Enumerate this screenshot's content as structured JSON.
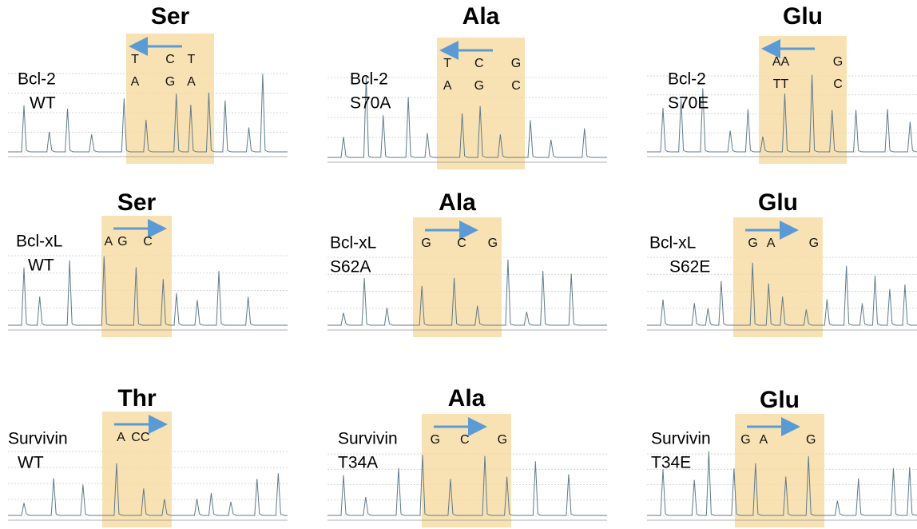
{
  "panels": [
    {
      "residue": "Ser",
      "gene": "Bcl-2",
      "variant": "WT",
      "top": [
        "T",
        "C",
        "T"
      ],
      "bottom": [
        "A",
        "G",
        "A"
      ]
    },
    {
      "residue": "Ala",
      "gene": "Bcl-2",
      "variant": "S70A",
      "top": [
        "T",
        "C",
        "G"
      ],
      "bottom": [
        "A",
        "G",
        "C"
      ]
    },
    {
      "residue": "Glu",
      "gene": "Bcl-2",
      "variant": "S70E",
      "top": [
        "AA",
        "G"
      ],
      "bottom": [
        "TT",
        "C"
      ]
    },
    {
      "residue": "Ser",
      "gene": "Bcl-xL",
      "variant": "WT",
      "top": [
        "A",
        "G",
        "C"
      ]
    },
    {
      "residue": "Ala",
      "gene": "Bcl-xL",
      "variant": "S62A",
      "top": [
        "G",
        "C",
        "G"
      ]
    },
    {
      "residue": "Glu",
      "gene": "Bcl-xL",
      "variant": "S62E",
      "top": [
        "G",
        "A",
        "G"
      ]
    },
    {
      "residue": "Thr",
      "gene": "Survivin",
      "variant": "WT",
      "top": [
        "A",
        "CC"
      ]
    },
    {
      "residue": "Ala",
      "gene": "Survivin",
      "variant": "T34A",
      "top": [
        "G",
        "C",
        "G"
      ]
    },
    {
      "residue": "Glu",
      "gene": "Survivin",
      "variant": "T34E",
      "top": [
        "G",
        "A",
        "G"
      ]
    }
  ]
}
